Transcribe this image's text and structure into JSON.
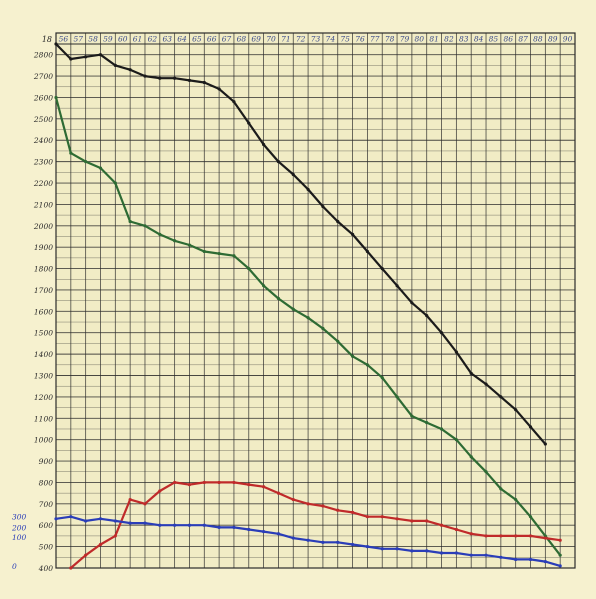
{
  "chart_data": {
    "type": "line",
    "title": "",
    "xlabel": "",
    "ylabel": "",
    "corner_label": "18",
    "x_tick_labels": [
      "56",
      "57",
      "58",
      "59",
      "60",
      "61",
      "62",
      "63",
      "64",
      "65",
      "66",
      "67",
      "68",
      "69",
      "70",
      "71",
      "72",
      "73",
      "74",
      "75",
      "76",
      "77",
      "78",
      "79",
      "80",
      "81",
      "82",
      "83",
      "84",
      "85",
      "86",
      "87",
      "88",
      "89",
      "90"
    ],
    "x": [
      1856,
      1857,
      1858,
      1859,
      1860,
      1861,
      1862,
      1863,
      1864,
      1865,
      1866,
      1867,
      1868,
      1869,
      1870,
      1871,
      1872,
      1873,
      1874,
      1875,
      1876,
      1877,
      1878,
      1879,
      1880,
      1881,
      1882,
      1883,
      1884,
      1885,
      1886,
      1887,
      1888,
      1889,
      1890
    ],
    "xlim": [
      1856,
      1891
    ],
    "y_tick_labels": [
      "2800",
      "2700",
      "2600",
      "2500",
      "2400",
      "2300",
      "2200",
      "2100",
      "2000",
      "1900",
      "1800",
      "1700",
      "1600",
      "1500",
      "1400",
      "1300",
      "1200",
      "1100",
      "1000",
      "900",
      "800",
      "700",
      "600",
      "500",
      "400"
    ],
    "ylim": [
      400,
      2850
    ],
    "secondary_y_tick_labels": [
      "300",
      "200",
      "100",
      "0"
    ],
    "grid": true,
    "series": [
      {
        "color": "#1b1b1b",
        "values": [
          2850,
          2780,
          2790,
          2800,
          2750,
          2730,
          2700,
          2690,
          2690,
          2680,
          2670,
          2640,
          2580,
          2480,
          2380,
          2300,
          2240,
          2170,
          2090,
          2020,
          1960,
          1880,
          1800,
          1720,
          1640,
          1580,
          1500,
          1410,
          1310,
          1260,
          1200,
          1140,
          1060,
          980,
          null
        ]
      },
      {
        "color": "#2e6b34",
        "values": [
          2600,
          2340,
          2300,
          2270,
          2200,
          2020,
          2000,
          1960,
          1930,
          1910,
          1880,
          1870,
          1860,
          1800,
          1720,
          1660,
          1610,
          1570,
          1520,
          1460,
          1390,
          1350,
          1290,
          1200,
          1110,
          1080,
          1050,
          1000,
          920,
          850,
          770,
          720,
          640,
          550,
          460
        ]
      },
      {
        "color": "#c02a2a",
        "values": [
          null,
          400,
          460,
          510,
          550,
          720,
          700,
          760,
          800,
          790,
          800,
          800,
          800,
          790,
          780,
          750,
          720,
          700,
          690,
          670,
          660,
          640,
          640,
          630,
          620,
          620,
          600,
          580,
          560,
          550,
          550,
          550,
          550,
          540,
          530
        ]
      },
      {
        "color": "#2a3db8",
        "values": [
          630,
          640,
          620,
          630,
          620,
          610,
          610,
          600,
          600,
          600,
          600,
          590,
          590,
          580,
          570,
          560,
          540,
          530,
          520,
          520,
          510,
          500,
          490,
          490,
          480,
          480,
          470,
          470,
          460,
          460,
          450,
          440,
          440,
          430,
          410
        ]
      }
    ]
  }
}
